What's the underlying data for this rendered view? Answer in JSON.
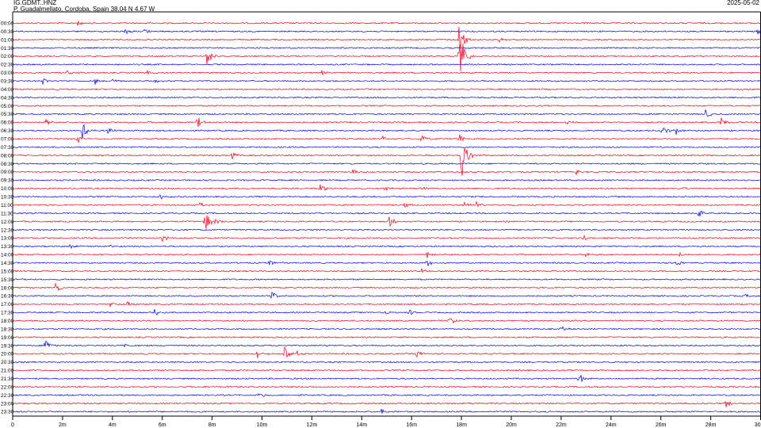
{
  "header": {
    "station": "IG.GDMT..HNZ",
    "location": "P. Guadalmellato, Cordoba, Spain  38.04 N 4.67 W",
    "date": "2025-05-02"
  },
  "chart_data": {
    "type": "line",
    "title": "",
    "xlabel": "",
    "ylabel": "",
    "x_ticks": [
      "0",
      "2m",
      "4m",
      "6m",
      "8m",
      "10m",
      "12m",
      "14m",
      "16m",
      "18m",
      "20m",
      "22m",
      "24m",
      "26m",
      "28m",
      "30"
    ],
    "xlim": [
      0,
      30
    ],
    "series": [
      {
        "label": "00:00",
        "color": "#e8001c",
        "events": [
          {
            "t": 2.6,
            "a": 0.35
          }
        ]
      },
      {
        "label": "00:30",
        "color": "#0000e8",
        "events": [
          {
            "t": 4.5,
            "a": 0.5
          },
          {
            "t": 5.3,
            "a": 0.3
          },
          {
            "t": 29.9,
            "a": 1.4
          }
        ]
      },
      {
        "label": "01:00",
        "color": "#e8001c",
        "events": [
          {
            "t": 17.9,
            "a": 2.2
          },
          {
            "t": 19.5,
            "a": 0.3
          }
        ]
      },
      {
        "label": "01:30",
        "color": "#0000e8",
        "events": []
      },
      {
        "label": "02:00",
        "color": "#e8001c",
        "events": [
          {
            "t": 7.8,
            "a": 1.3
          },
          {
            "t": 17.9,
            "a": 4.0
          }
        ]
      },
      {
        "label": "02:30",
        "color": "#0000e8",
        "events": []
      },
      {
        "label": "03:00",
        "color": "#e8001c",
        "events": [
          {
            "t": 2.2,
            "a": 0.4
          },
          {
            "t": 5.4,
            "a": 0.3
          },
          {
            "t": 12.4,
            "a": 0.3
          }
        ]
      },
      {
        "label": "03:30",
        "color": "#0000e8",
        "events": [
          {
            "t": 1.2,
            "a": 0.4
          },
          {
            "t": 3.3,
            "a": 0.4
          },
          {
            "t": 4.0,
            "a": 0.3
          },
          {
            "t": 5.7,
            "a": 0.3
          }
        ]
      },
      {
        "label": "04:00",
        "color": "#e8001c",
        "events": []
      },
      {
        "label": "04:30",
        "color": "#0000e8",
        "events": []
      },
      {
        "label": "05:00",
        "color": "#e8001c",
        "events": []
      },
      {
        "label": "05:30",
        "color": "#0000e8",
        "events": [
          {
            "t": 27.8,
            "a": 0.8
          }
        ]
      },
      {
        "label": "06:00",
        "color": "#e8001c",
        "events": [
          {
            "t": 1.3,
            "a": 0.4
          },
          {
            "t": 7.4,
            "a": 0.7
          },
          {
            "t": 22.2,
            "a": 0.3
          },
          {
            "t": 28.4,
            "a": 0.7
          }
        ]
      },
      {
        "label": "06:30",
        "color": "#0000e8",
        "events": [
          {
            "t": 2.8,
            "a": 1.0
          },
          {
            "t": 3.8,
            "a": 0.4
          },
          {
            "t": 26.0,
            "a": 0.9
          },
          {
            "t": 26.6,
            "a": 0.6
          }
        ]
      },
      {
        "label": "07:00",
        "color": "#e8001c",
        "events": [
          {
            "t": 2.6,
            "a": 0.5
          },
          {
            "t": 14.8,
            "a": 0.5
          },
          {
            "t": 16.4,
            "a": 0.5
          },
          {
            "t": 17.9,
            "a": 0.6
          }
        ]
      },
      {
        "label": "07:30",
        "color": "#0000e8",
        "events": []
      },
      {
        "label": "08:00",
        "color": "#e8001c",
        "events": [
          {
            "t": 8.8,
            "a": 0.5
          },
          {
            "t": 18.0,
            "a": 3.0
          }
        ]
      },
      {
        "label": "08:30",
        "color": "#0000e8",
        "events": []
      },
      {
        "label": "09:00",
        "color": "#e8001c",
        "events": [
          {
            "t": 13.6,
            "a": 0.4
          },
          {
            "t": 22.6,
            "a": 0.3
          }
        ]
      },
      {
        "label": "09:30",
        "color": "#0000e8",
        "events": []
      },
      {
        "label": "10:00",
        "color": "#e8001c",
        "events": [
          {
            "t": 12.3,
            "a": 0.6
          },
          {
            "t": 14.9,
            "a": 0.4
          },
          {
            "t": 16.4,
            "a": 0.4
          },
          {
            "t": 26.8,
            "a": 0.3
          }
        ]
      },
      {
        "label": "10:30",
        "color": "#0000e8",
        "events": [
          {
            "t": 5.9,
            "a": 0.5
          }
        ]
      },
      {
        "label": "11:00",
        "color": "#e8001c",
        "events": [
          {
            "t": 7.5,
            "a": 0.3
          },
          {
            "t": 15.7,
            "a": 0.3
          },
          {
            "t": 18.1,
            "a": 0.5
          },
          {
            "t": 18.6,
            "a": 0.4
          }
        ]
      },
      {
        "label": "11:30",
        "color": "#0000e8",
        "events": [
          {
            "t": 27.5,
            "a": 0.6
          }
        ]
      },
      {
        "label": "12:00",
        "color": "#e8001c",
        "events": [
          {
            "t": 7.7,
            "a": 1.5
          },
          {
            "t": 8.1,
            "a": 0.4
          },
          {
            "t": 15.1,
            "a": 0.6
          }
        ]
      },
      {
        "label": "12:30",
        "color": "#0000e8",
        "events": []
      },
      {
        "label": "13:00",
        "color": "#e8001c",
        "events": [
          {
            "t": 6.0,
            "a": 0.4
          },
          {
            "t": 22.9,
            "a": 0.4
          }
        ]
      },
      {
        "label": "13:30",
        "color": "#0000e8",
        "events": [
          {
            "t": 2.3,
            "a": 0.4
          },
          {
            "t": 3.9,
            "a": 0.3
          }
        ]
      },
      {
        "label": "14:00",
        "color": "#e8001c",
        "events": [
          {
            "t": 16.6,
            "a": 0.4
          },
          {
            "t": 23.0,
            "a": 0.3
          },
          {
            "t": 26.7,
            "a": 0.4
          }
        ]
      },
      {
        "label": "14:30",
        "color": "#0000e8",
        "events": [
          {
            "t": 10.3,
            "a": 0.4
          },
          {
            "t": 16.6,
            "a": 0.5
          },
          {
            "t": 26.6,
            "a": 0.4
          }
        ]
      },
      {
        "label": "15:00",
        "color": "#e8001c",
        "events": [
          {
            "t": 16.4,
            "a": 0.3
          }
        ]
      },
      {
        "label": "15:30",
        "color": "#0000e8",
        "events": []
      },
      {
        "label": "16:00",
        "color": "#e8001c",
        "events": [
          {
            "t": 1.7,
            "a": 0.9
          }
        ]
      },
      {
        "label": "16:30",
        "color": "#0000e8",
        "events": [
          {
            "t": 10.4,
            "a": 0.6
          },
          {
            "t": 29.3,
            "a": 0.3
          }
        ]
      },
      {
        "label": "17:00",
        "color": "#e8001c",
        "events": [
          {
            "t": 3.9,
            "a": 0.4
          },
          {
            "t": 4.6,
            "a": 0.4
          }
        ]
      },
      {
        "label": "17:30",
        "color": "#0000e8",
        "events": [
          {
            "t": 5.7,
            "a": 0.5
          },
          {
            "t": 14.9,
            "a": 0.3
          },
          {
            "t": 15.9,
            "a": 0.4
          }
        ]
      },
      {
        "label": "18:00",
        "color": "#e8001c",
        "events": [
          {
            "t": 17.5,
            "a": 0.7
          }
        ]
      },
      {
        "label": "18:30",
        "color": "#0000e8",
        "events": [
          {
            "t": 22.0,
            "a": 0.4
          }
        ]
      },
      {
        "label": "19:00",
        "color": "#e8001c",
        "events": []
      },
      {
        "label": "19:30",
        "color": "#0000e8",
        "events": [
          {
            "t": 1.3,
            "a": 0.9
          },
          {
            "t": 4.5,
            "a": 0.3
          }
        ]
      },
      {
        "label": "20:00",
        "color": "#e8001c",
        "events": [
          {
            "t": 9.8,
            "a": 0.6
          },
          {
            "t": 10.9,
            "a": 1.0
          },
          {
            "t": 11.4,
            "a": 0.4
          },
          {
            "t": 16.2,
            "a": 0.5
          }
        ]
      },
      {
        "label": "20:30",
        "color": "#0000e8",
        "events": []
      },
      {
        "label": "21:00",
        "color": "#e8001c",
        "events": []
      },
      {
        "label": "21:30",
        "color": "#0000e8",
        "events": [
          {
            "t": 22.7,
            "a": 0.7
          }
        ]
      },
      {
        "label": "22:00",
        "color": "#e8001c",
        "events": []
      },
      {
        "label": "22:30",
        "color": "#0000e8",
        "events": [
          {
            "t": 9.9,
            "a": 0.6
          }
        ]
      },
      {
        "label": "23:00",
        "color": "#e8001c",
        "events": [
          {
            "t": 28.6,
            "a": 0.6
          }
        ]
      },
      {
        "label": "23:30",
        "color": "#0000e8",
        "events": [
          {
            "t": 14.8,
            "a": 0.5
          }
        ]
      }
    ]
  }
}
